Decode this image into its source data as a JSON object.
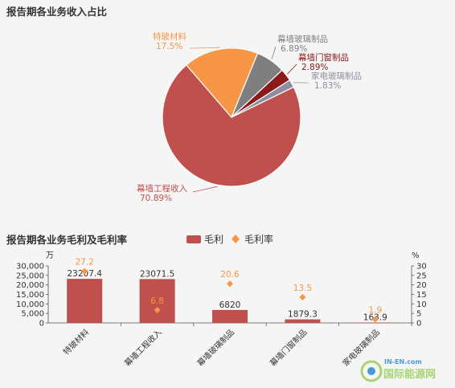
{
  "pie_section": {
    "title": "报告期各业务收入占比"
  },
  "bar_section": {
    "title": "报告期各业务毛利及毛利率",
    "legend": {
      "bar": "毛利",
      "point": "毛利率"
    },
    "left_unit": "万",
    "right_unit": "%"
  },
  "colors": {
    "bar": "#c0504d",
    "point": "#f79646",
    "pie": [
      "#c0504d",
      "#f79646",
      "#7f7f7f",
      "#8b1a1a",
      "#8e8ea0"
    ],
    "pie_label": [
      "#c0504d",
      "#f79646",
      "#7f7f7f",
      "#8b1a1a",
      "#8e8ea0"
    ]
  },
  "chart_data": [
    {
      "type": "pie",
      "title": "报告期各业务收入占比",
      "slices": [
        {
          "label": "幕墙工程收入",
          "value": 70.89,
          "text": "70.89%"
        },
        {
          "label": "特玻材料",
          "value": 17.5,
          "text": "17.5%"
        },
        {
          "label": "幕墙玻璃制品",
          "value": 6.89,
          "text": "6.89%"
        },
        {
          "label": "幕墙门窗制品",
          "value": 2.89,
          "text": "2.89%"
        },
        {
          "label": "家电玻璃制品",
          "value": 1.83,
          "text": "1.83%"
        }
      ]
    },
    {
      "type": "bar",
      "title": "报告期各业务毛利及毛利率",
      "categories": [
        "特玻材料",
        "幕墙工程收入",
        "幕墙玻璃制品",
        "幕墙门窗制品",
        "家电玻璃制品"
      ],
      "series": [
        {
          "name": "毛利",
          "type": "bar",
          "axis": "left",
          "values": [
            23207.4,
            23071.5,
            6820,
            1879.3,
            163.9
          ],
          "labels": [
            "23207.4",
            "23071.5",
            "6820",
            "1879.3",
            "163.9"
          ]
        },
        {
          "name": "毛利率",
          "type": "scatter",
          "axis": "right",
          "values": [
            27.2,
            6.8,
            20.6,
            13.5,
            1.9
          ],
          "labels": [
            "27.2",
            "6.8",
            "20.6",
            "13.5",
            "1.9"
          ]
        }
      ],
      "ylim_left": [
        0,
        30000
      ],
      "yticks_left": [
        "0",
        "5,000",
        "10,000",
        "15,000",
        "20,000",
        "25,000",
        "30,000"
      ],
      "ylim_right": [
        0,
        30
      ],
      "yticks_right": [
        "0",
        "5",
        "10",
        "15",
        "20",
        "25",
        "30"
      ],
      "legend_position": "top-right"
    }
  ],
  "watermark": {
    "big": "国际能源网",
    "small": "IN-EN.com"
  }
}
